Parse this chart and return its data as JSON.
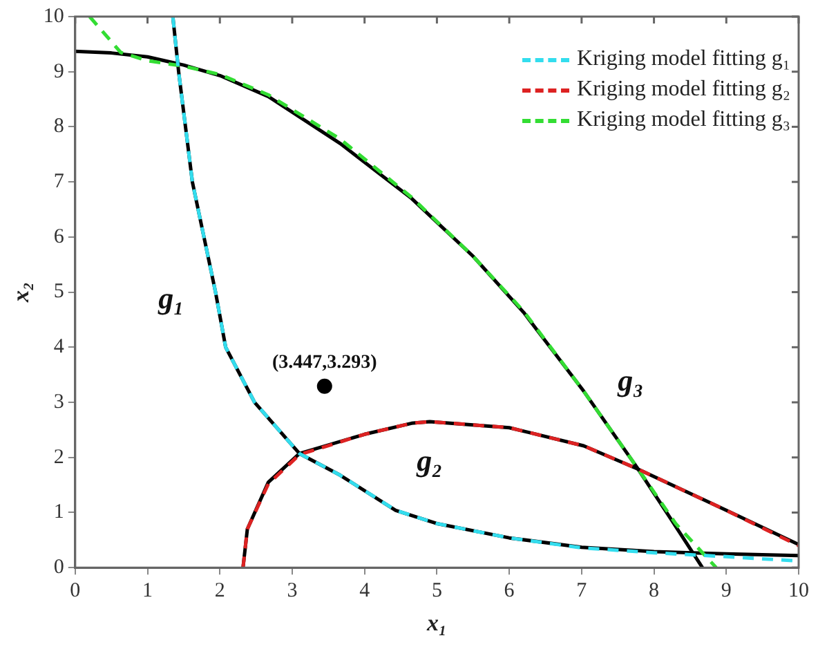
{
  "chart_data": {
    "type": "line",
    "xlabel": "x₁",
    "ylabel": "x₂",
    "xlim": [
      0,
      10
    ],
    "ylim": [
      0,
      10
    ],
    "xticks": [
      0,
      1,
      2,
      3,
      4,
      5,
      6,
      7,
      8,
      9,
      10
    ],
    "yticks": [
      0,
      1,
      2,
      3,
      4,
      5,
      6,
      7,
      8,
      9,
      10
    ],
    "grid": false,
    "legend": "top right",
    "marker": "none",
    "series": [
      {
        "color": "#000000",
        "line_style": "solid",
        "x": [
          1.35,
          1.43,
          1.62,
          1.94,
          2.08,
          2.48,
          3.1,
          3.66,
          4.43,
          5,
          6,
          7,
          8,
          9,
          10
        ],
        "values": [
          10,
          9,
          7,
          5,
          4,
          3,
          2.07,
          1.68,
          1.04,
          0.8,
          0.54,
          0.37,
          0.29,
          0.25,
          0.22
        ]
      },
      {
        "color": "#000000",
        "line_style": "solid",
        "x": [
          2.32,
          2.38,
          2.67,
          3.1,
          4,
          4.65,
          4.9,
          6,
          7.03,
          7.76,
          9,
          10
        ],
        "values": [
          0,
          0.7,
          1.55,
          2.07,
          2.42,
          2.62,
          2.65,
          2.54,
          2.21,
          1.8,
          1.04,
          0.42
        ]
      },
      {
        "color": "#000000",
        "line_style": "solid",
        "x": [
          0,
          0.5,
          1,
          1.5,
          2,
          2.67,
          3.66,
          4.65,
          5.5,
          6.2,
          7.03,
          7.76,
          8.25,
          8.67
        ],
        "values": [
          9.37,
          9.34,
          9.27,
          9.12,
          8.93,
          8.55,
          7.7,
          6.7,
          5.65,
          4.63,
          3.2,
          1.83,
          0.85,
          0
        ]
      },
      {
        "name": "Kriging model fitting g₁",
        "color": "#33ddee",
        "line_style": "dashed",
        "x": [
          1.35,
          1.43,
          1.62,
          1.94,
          2.08,
          2.48,
          3.1,
          3.66,
          4.43,
          5,
          6,
          7,
          8,
          9,
          10
        ],
        "values": [
          10,
          9,
          7,
          5,
          4,
          3,
          2.07,
          1.68,
          1.04,
          0.8,
          0.54,
          0.36,
          0.27,
          0.2,
          0.12
        ]
      },
      {
        "name": "Kriging model fitting g₂",
        "color": "#dd2222",
        "line_style": "dashed",
        "x": [
          2.32,
          2.38,
          2.67,
          3.1,
          4,
          4.65,
          4.9,
          6,
          7.03,
          7.76,
          9,
          10
        ],
        "values": [
          0,
          0.7,
          1.52,
          2.05,
          2.42,
          2.62,
          2.65,
          2.54,
          2.21,
          1.8,
          1.04,
          0.4
        ]
      },
      {
        "name": "Kriging model fitting g₃",
        "color": "#33dd33",
        "line_style": "dashed",
        "x": [
          0.2,
          0.63,
          1,
          1.5,
          2,
          2.67,
          3.66,
          4.65,
          5.5,
          6.2,
          7.03,
          7.76,
          8.3,
          8.86
        ],
        "values": [
          10,
          9.35,
          9.2,
          9.1,
          8.95,
          8.58,
          7.78,
          6.72,
          5.65,
          4.65,
          3.2,
          1.83,
          0.8,
          0
        ]
      },
      {
        "type": "scatter",
        "color": "#000000",
        "marker": "circle",
        "x": [
          3.447
        ],
        "values": [
          3.293
        ]
      }
    ],
    "annotations": [
      {
        "text": "(3.447,3.293)",
        "x": 3.447,
        "y": 3.293
      },
      {
        "text": "g₁",
        "x": 1.94,
        "y": 5
      },
      {
        "text": "g₂",
        "x": 4.9,
        "y": 2.65
      },
      {
        "text": "g₃",
        "x": 7.03,
        "y": 3.2
      }
    ]
  }
}
